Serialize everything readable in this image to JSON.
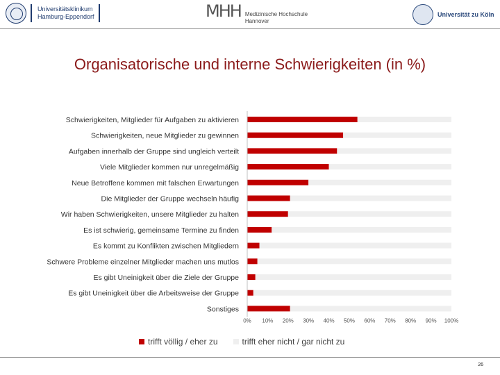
{
  "header": {
    "uke_lines": [
      "Universitätsklinikum",
      "Hamburg-Eppendorf"
    ],
    "mhh_mark": "MHH",
    "mhh_lines": [
      "Medizinische Hochschule",
      "Hannover"
    ],
    "koeln_name": "Universität zu Köln"
  },
  "slide": {
    "title": "Organisatorische und interne Schwierigkeiten (in %)",
    "page_number": "26"
  },
  "colors": {
    "primary_series": "#c00000",
    "secondary_series": "#efefef",
    "title": "#8b1a1a"
  },
  "chart_data": {
    "type": "bar",
    "orientation": "horizontal",
    "stacked": true,
    "categories": [
      "Schwierigkeiten, Mitglieder für Aufgaben zu aktivieren",
      "Schwierigkeiten, neue Mitglieder zu gewinnen",
      "Aufgaben innerhalb der Gruppe sind ungleich verteilt",
      "Viele Mitglieder kommen nur unregelmäßig",
      "Neue Betroffene kommen mit falschen Erwartungen",
      "Die Mitglieder der Gruppe wechseln häufig",
      "Wir haben Schwierigkeiten, unsere Mitglieder zu halten",
      "Es ist schwierig, gemeinsame Termine zu finden",
      "Es kommt zu Konflikten zwischen Mitgliedern",
      "Schwere Probleme einzelner Mitglieder machen uns mutlos",
      "Es gibt Uneinigkeit über die Ziele der Gruppe",
      "Es gibt Uneinigkeit über die Arbeitsweise der Gruppe",
      "Sonstiges"
    ],
    "series": [
      {
        "name": "trifft völlig / eher zu",
        "values": [
          54,
          47,
          44,
          40,
          30,
          21,
          20,
          12,
          6,
          5,
          4,
          3,
          21
        ]
      },
      {
        "name": "trifft eher nicht / gar nicht zu",
        "values": [
          46,
          53,
          56,
          60,
          70,
          79,
          80,
          88,
          94,
          95,
          96,
          97,
          79
        ]
      }
    ],
    "xlim": [
      0,
      100
    ],
    "xticks": [
      "0%",
      "10%",
      "20%",
      "30%",
      "40%",
      "50%",
      "60%",
      "70%",
      "80%",
      "90%",
      "100%"
    ],
    "legend_position": "bottom",
    "grid": false
  }
}
